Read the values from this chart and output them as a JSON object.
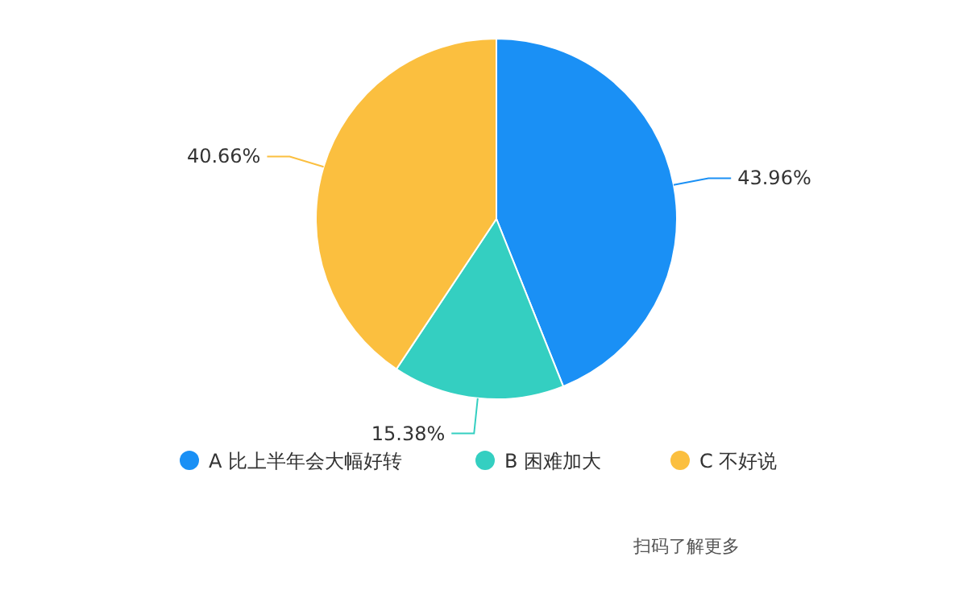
{
  "chart_data": {
    "type": "pie",
    "categories": [
      "A 比上半年会大幅好转",
      "B 困难加大",
      "C 不好说"
    ],
    "values": [
      43.96,
      15.38,
      40.66
    ],
    "colors": [
      "#1a90f5",
      "#34cfc1",
      "#fbbf3f"
    ],
    "value_labels": [
      "43.96%",
      "15.38%",
      "40.66%"
    ],
    "legend": "bottom",
    "annotations": [
      "扫码了解更多"
    ]
  }
}
